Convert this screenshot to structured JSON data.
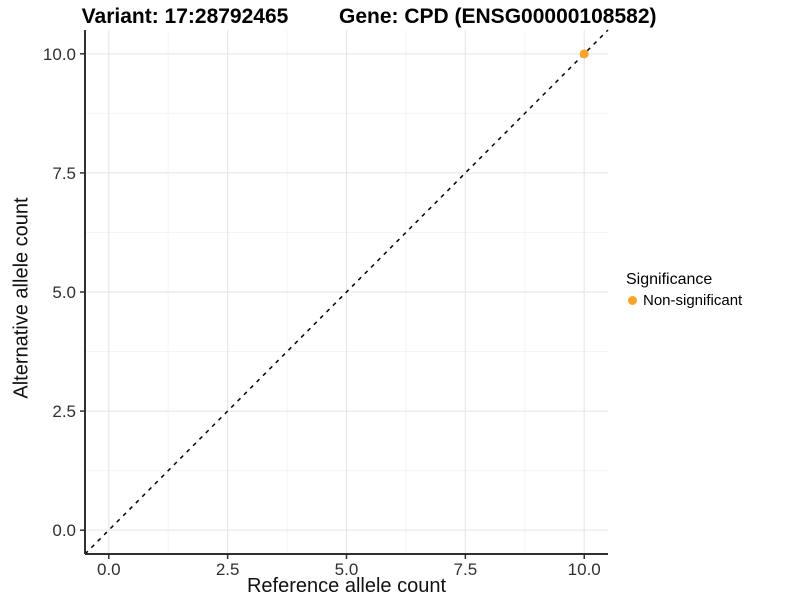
{
  "titles": {
    "variant": "Variant: 17:28792465",
    "gene": "Gene: CPD (ENSG00000108582)"
  },
  "legend": {
    "title": "Significance",
    "items": [
      {
        "label": "Non-significant",
        "color": "#FCA32B"
      }
    ]
  },
  "chart_data": {
    "type": "scatter",
    "title": "Variant: 17:28792465 — Gene: CPD (ENSG00000108582)",
    "xlabel": "Reference allele count",
    "ylabel": "Alternative allele count",
    "xlim": [
      -0.5,
      10.5
    ],
    "ylim": [
      -0.5,
      10.5
    ],
    "xticks": [
      0,
      2.5,
      5,
      7.5,
      10
    ],
    "yticks": [
      0,
      2.5,
      5,
      7.5,
      10
    ],
    "xtick_labels": [
      "0.0",
      "2.5",
      "5.0",
      "7.5",
      "10.0"
    ],
    "ytick_labels": [
      "0.0",
      "2.5",
      "5.0",
      "7.5",
      "10.0"
    ],
    "minor_xticks": [
      1.25,
      3.75,
      6.25,
      8.75
    ],
    "minor_yticks": [
      1.25,
      3.75,
      6.25,
      8.75
    ],
    "grid": "major+minor",
    "legend_position": "right",
    "legend_title": "Significance",
    "series": [
      {
        "name": "Non-significant",
        "color": "#FCA32B",
        "points": [
          {
            "x": 10,
            "y": 10
          }
        ]
      }
    ],
    "reference_line": {
      "slope": 1,
      "intercept": 0,
      "style": "dashed",
      "color": "#000000"
    }
  },
  "style": {
    "background": "#FFFFFF",
    "major_grid_color": "#E8E8E8",
    "minor_grid_color": "#F4F4F4",
    "axis_line_color": "#2F2F2F",
    "tick_color": "#2F2F2F",
    "tick_label_color": "#303030",
    "title_color": "#000000",
    "reference_line_color": "#000000",
    "point_color": "#FCA32B"
  }
}
